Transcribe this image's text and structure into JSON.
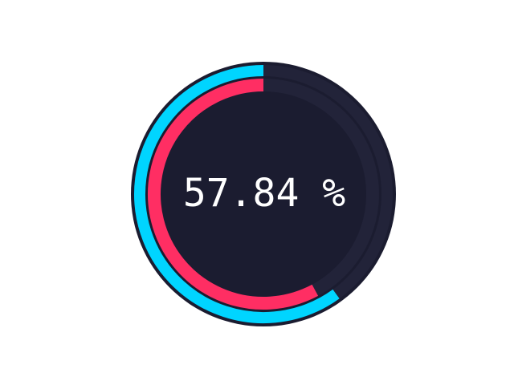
{
  "gauge": {
    "value_text": "57.84",
    "unit": "%",
    "outer_progress": 0.6,
    "inner_progress": 0.5784,
    "colors": {
      "background": "#ffffff",
      "face": "#1b1c30",
      "track": "#222339",
      "outer_ring": "#00d5ff",
      "inner_ring": "#ff2e63",
      "text": "#ffffff"
    }
  }
}
